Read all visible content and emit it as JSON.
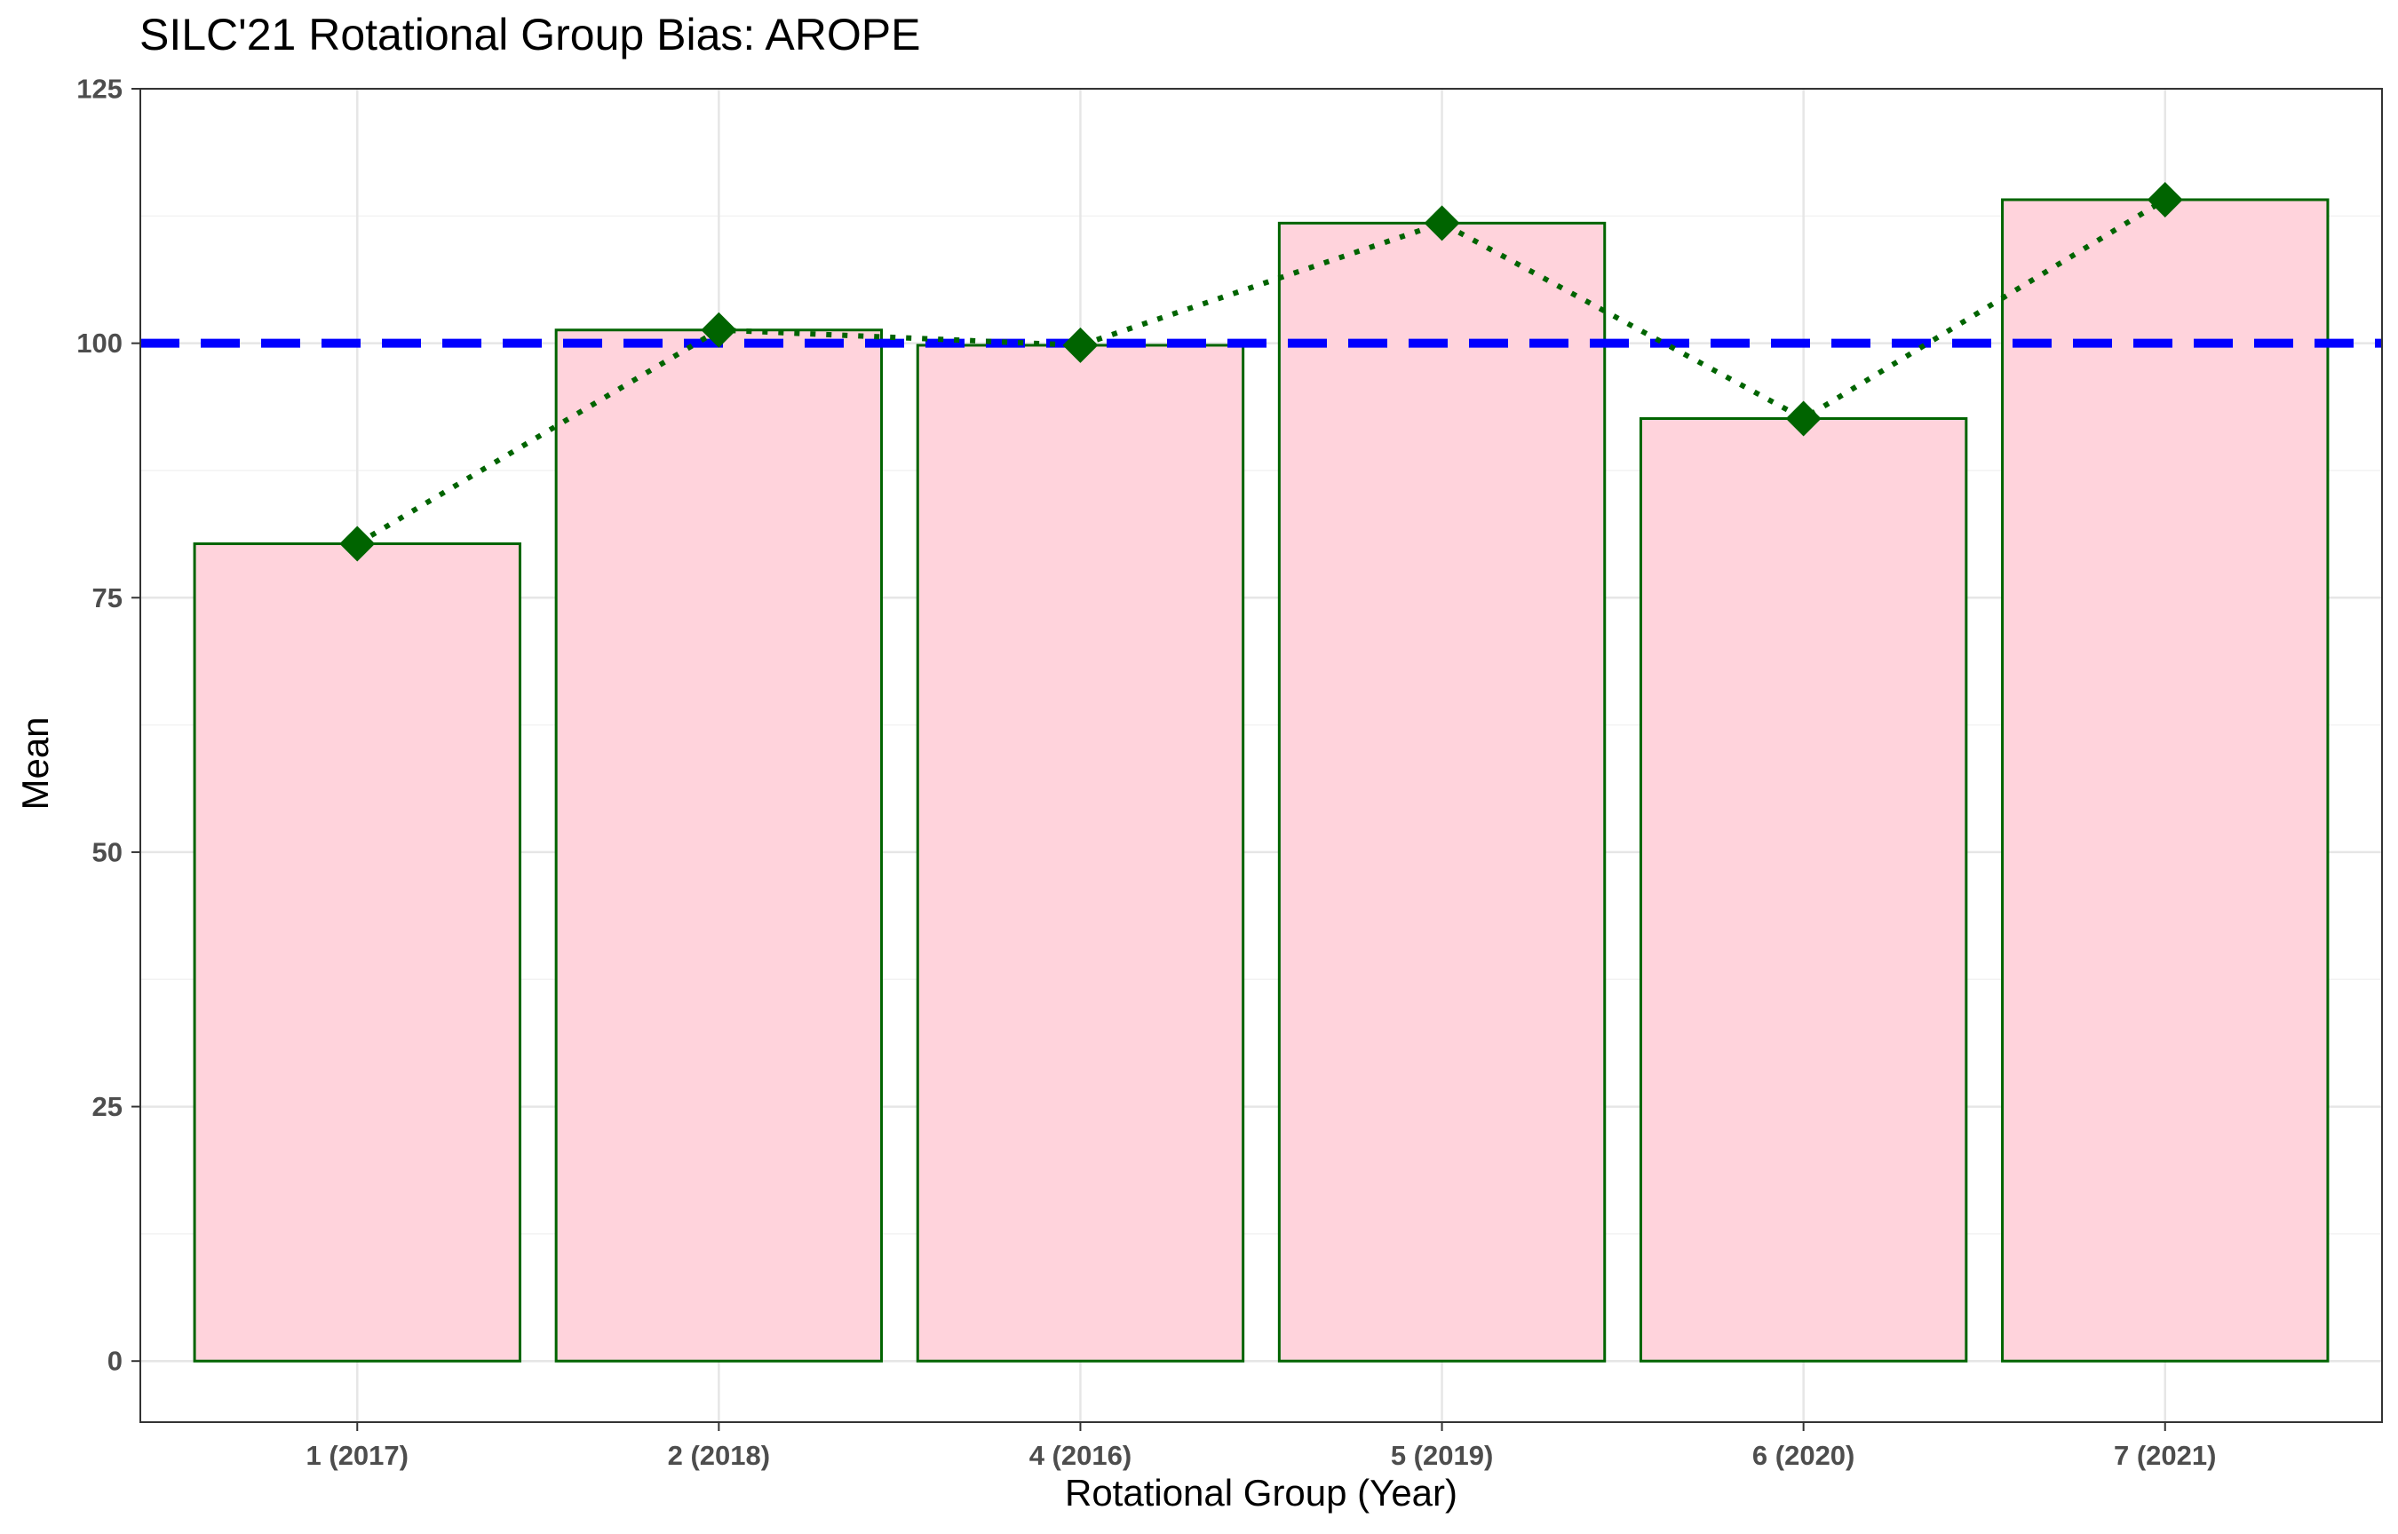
{
  "chart_data": {
    "type": "bar",
    "title": "SILC'21 Rotational Group Bias: AROPE",
    "xlabel": "Rotational Group (Year)",
    "ylabel": "Mean",
    "categories": [
      "1 (2017)",
      "2 (2018)",
      "4 (2016)",
      "5 (2019)",
      "6 (2020)",
      "7 (2021)"
    ],
    "values": [
      80.3,
      101.3,
      99.8,
      111.8,
      92.6,
      114.1
    ],
    "ylim": [
      -6,
      125
    ],
    "yticks": [
      0,
      25,
      50,
      75,
      100,
      125
    ],
    "reference_line": {
      "value": 100,
      "style": "dashed",
      "color": "#0000ff"
    },
    "overlay_line": {
      "style": "dotted",
      "marker": "diamond",
      "color": "#006400"
    },
    "grid": true,
    "colors": {
      "bar_fill": "#ffd3dc",
      "bar_stroke": "#006400",
      "points": "#006400",
      "reference": "#0000ff"
    }
  }
}
